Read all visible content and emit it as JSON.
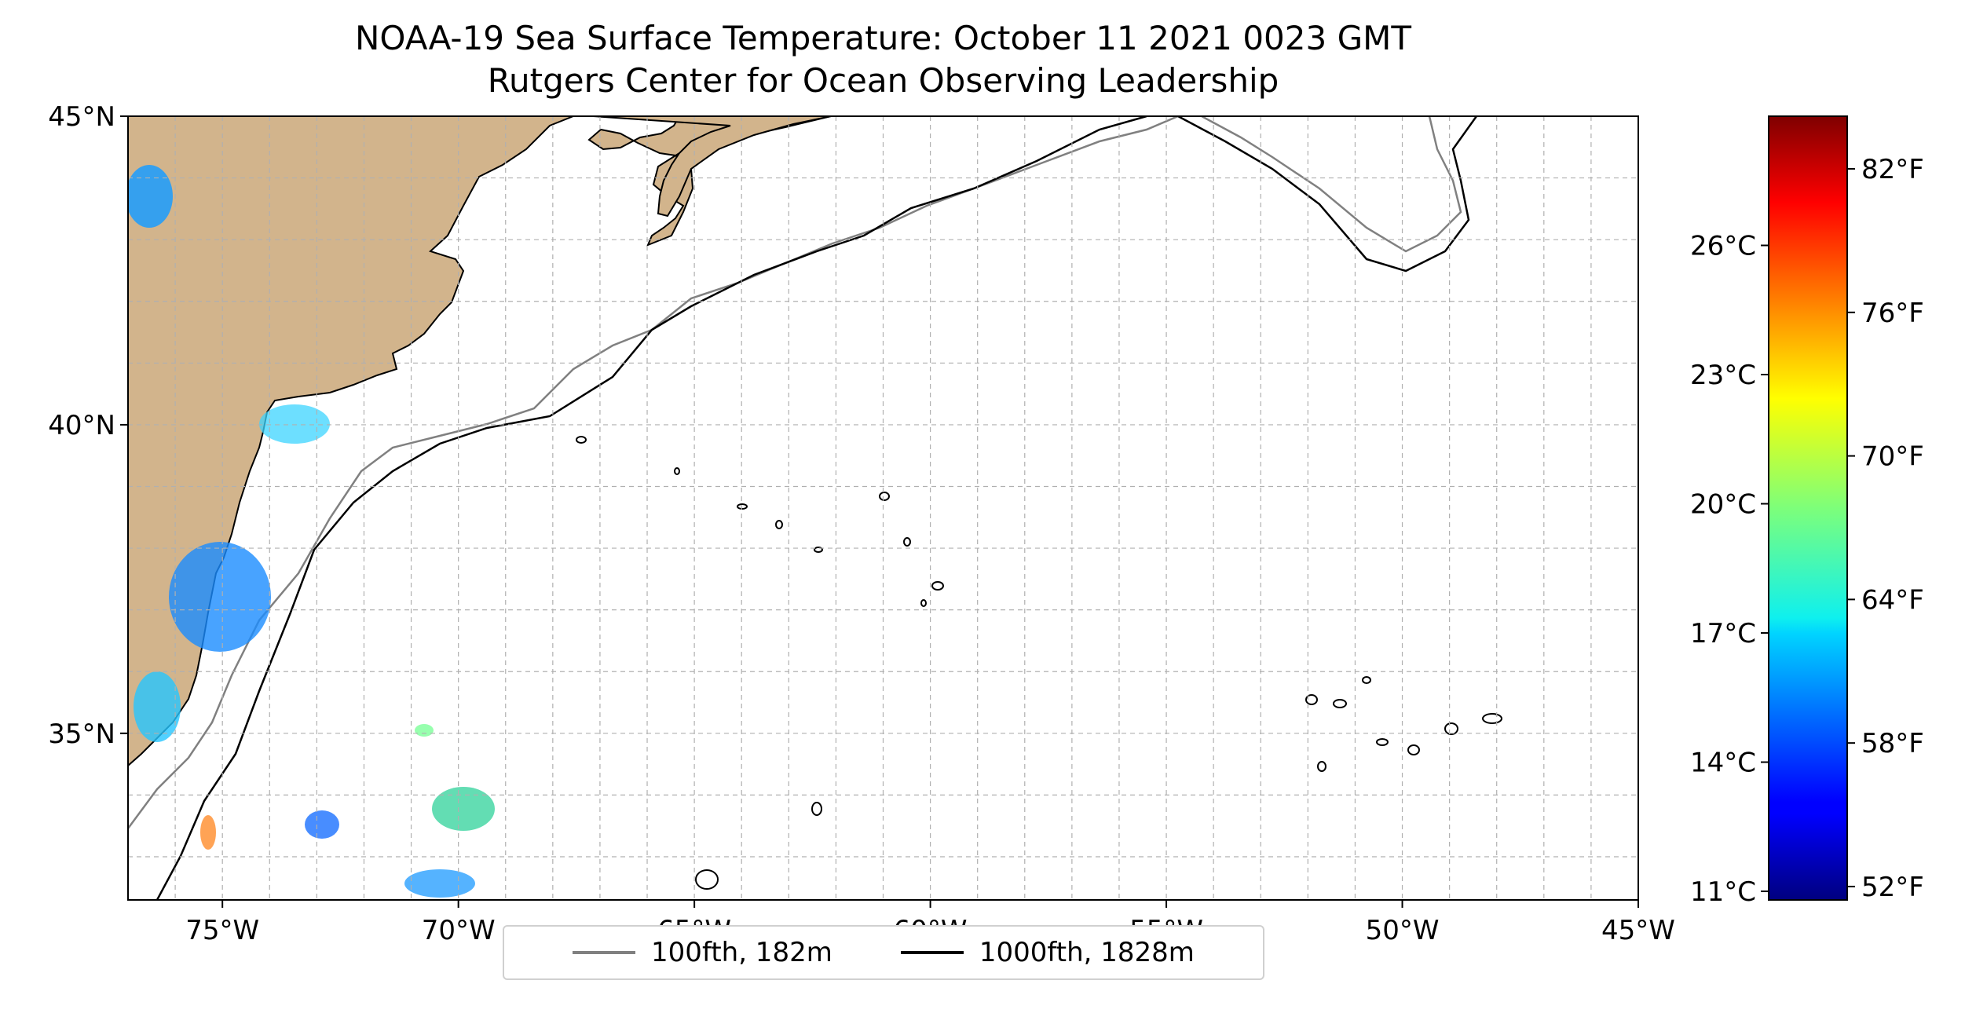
{
  "title": {
    "line1": "NOAA-19 Sea Surface Temperature: October 11 2021 0023 GMT",
    "line2": "Rutgers Center for Ocean Observing Leadership"
  },
  "map": {
    "lon_range": [
      -77,
      -45
    ],
    "lat_range": [
      32.3,
      45
    ],
    "lon_ticks": [
      -75,
      -70,
      -65,
      -60,
      -55,
      -50,
      -45
    ],
    "lon_tick_labels": [
      "75°W",
      "70°W",
      "65°W",
      "60°W",
      "55°W",
      "50°W",
      "45°W"
    ],
    "lat_ticks": [
      35,
      40,
      45
    ],
    "lat_tick_labels": [
      "35°N",
      "40°N",
      "45°N"
    ],
    "gridlines": true,
    "land_color": "#d2b48c",
    "water_color": "#ffffff"
  },
  "colorbar": {
    "colormap": "jet",
    "range_c": [
      10.8,
      29
    ],
    "celsius_ticks": [
      11,
      14,
      17,
      20,
      23,
      26
    ],
    "celsius_labels": [
      "11°C",
      "14°C",
      "17°C",
      "20°C",
      "23°C",
      "26°C"
    ],
    "fahrenheit_ticks": [
      52,
      58,
      64,
      70,
      76,
      82
    ],
    "fahrenheit_labels": [
      "52°F",
      "58°F",
      "64°F",
      "70°F",
      "76°F",
      "82°F"
    ]
  },
  "legend": {
    "items": [
      {
        "label": "100fth, 182m",
        "color": "#808080"
      },
      {
        "label": "1000fth, 1828m",
        "color": "#000000"
      }
    ]
  }
}
